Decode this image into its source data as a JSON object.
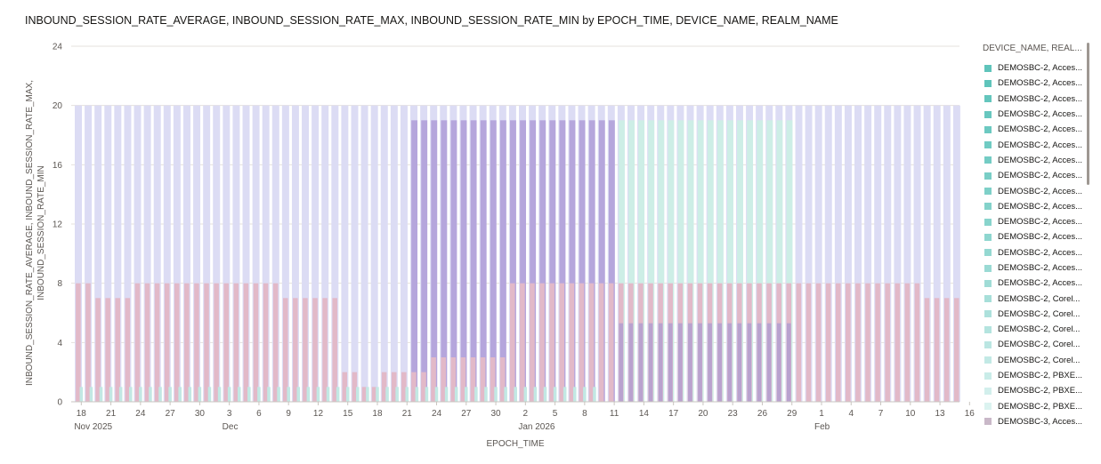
{
  "chart_data": {
    "type": "bar",
    "title": "INBOUND_SESSION_RATE_AVERAGE, INBOUND_SESSION_RATE_MAX, INBOUND_SESSION_RATE_MIN by EPOCH_TIME, DEVICE_NAME, REALM_NAME",
    "xlabel": "EPOCH_TIME",
    "ylabel_lines": [
      "INBOUND_SESSION_RATE_AVERAGE, INBOUND_SESSION_RATE_MAX,",
      "INBOUND_SESSION_RATE_MIN"
    ],
    "ylim": [
      0,
      24
    ],
    "yticks": [
      0,
      4,
      8,
      12,
      16,
      20,
      24
    ],
    "grid": true,
    "legend_position": "right",
    "x_tick_labels": [
      {
        "label": "18",
        "sub": "Nov 2025"
      },
      {
        "label": "21",
        "sub": ""
      },
      {
        "label": "24",
        "sub": ""
      },
      {
        "label": "27",
        "sub": ""
      },
      {
        "label": "30",
        "sub": ""
      },
      {
        "label": "3",
        "sub": "Dec"
      },
      {
        "label": "6",
        "sub": ""
      },
      {
        "label": "9",
        "sub": ""
      },
      {
        "label": "12",
        "sub": ""
      },
      {
        "label": "15",
        "sub": ""
      },
      {
        "label": "18",
        "sub": ""
      },
      {
        "label": "21",
        "sub": ""
      },
      {
        "label": "24",
        "sub": ""
      },
      {
        "label": "27",
        "sub": ""
      },
      {
        "label": "30",
        "sub": ""
      },
      {
        "label": "2",
        "sub": "Jan 2026"
      },
      {
        "label": "5",
        "sub": ""
      },
      {
        "label": "8",
        "sub": ""
      },
      {
        "label": "11",
        "sub": ""
      },
      {
        "label": "14",
        "sub": ""
      },
      {
        "label": "17",
        "sub": ""
      },
      {
        "label": "20",
        "sub": ""
      },
      {
        "label": "23",
        "sub": ""
      },
      {
        "label": "26",
        "sub": ""
      },
      {
        "label": "29",
        "sub": ""
      },
      {
        "label": "1",
        "sub": "Feb"
      },
      {
        "label": "4",
        "sub": ""
      },
      {
        "label": "7",
        "sub": ""
      },
      {
        "label": "10",
        "sub": ""
      },
      {
        "label": "13",
        "sub": ""
      },
      {
        "label": "16",
        "sub": ""
      }
    ],
    "x_days": 90,
    "series": [
      {
        "color": "#dcdcf4",
        "values": [
          20,
          20,
          20,
          20,
          20,
          20,
          20,
          20,
          20,
          20,
          20,
          20,
          20,
          20,
          20,
          20,
          20,
          20,
          20,
          20,
          20,
          20,
          20,
          20,
          20,
          20,
          20,
          20,
          20,
          20,
          20,
          20,
          20,
          20,
          20,
          20,
          20,
          20,
          20,
          20,
          20,
          20,
          20,
          20,
          20,
          20,
          20,
          20,
          20,
          20,
          20,
          20,
          20,
          20,
          20,
          20,
          20,
          20,
          20,
          20,
          20,
          20,
          20,
          20,
          20,
          20,
          20,
          20,
          20,
          20,
          20,
          20,
          20,
          20,
          20,
          20,
          20,
          20,
          20,
          20,
          20,
          20,
          20,
          20,
          20,
          20,
          20,
          20,
          20,
          20,
          20
        ]
      },
      {
        "color": "#b5a6dc",
        "values": [
          0,
          0,
          0,
          0,
          0,
          0,
          0,
          0,
          0,
          0,
          0,
          0,
          0,
          0,
          0,
          0,
          0,
          0,
          0,
          0,
          0,
          0,
          0,
          0,
          0,
          0,
          0,
          0,
          0,
          0,
          0,
          0,
          0,
          0,
          19,
          19,
          19,
          19,
          19,
          19,
          19,
          19,
          19,
          19,
          19,
          19,
          19,
          19,
          19,
          19,
          19,
          19,
          19,
          19,
          19,
          0,
          0,
          0,
          0,
          0,
          0,
          0,
          0,
          0,
          0,
          0,
          0,
          0,
          0,
          0,
          0,
          0,
          0,
          0,
          0,
          0,
          0,
          0,
          0,
          0,
          0,
          0,
          0,
          0,
          0,
          0,
          0,
          0,
          0,
          0,
          0
        ]
      },
      {
        "color": "#cdeee6",
        "values": [
          0,
          0,
          0,
          0,
          0,
          0,
          0,
          0,
          0,
          0,
          0,
          0,
          0,
          0,
          0,
          0,
          0,
          0,
          0,
          0,
          0,
          0,
          0,
          0,
          0,
          0,
          0,
          0,
          0,
          0,
          0,
          0,
          0,
          0,
          0,
          0,
          0,
          0,
          0,
          0,
          0,
          0,
          0,
          0,
          0,
          0,
          0,
          0,
          0,
          0,
          0,
          0,
          0,
          0,
          0,
          19,
          19,
          19,
          19,
          19,
          19,
          19,
          19,
          19,
          19,
          19,
          19,
          19,
          19,
          19,
          19,
          19,
          19,
          0,
          0,
          0,
          0,
          0,
          0,
          0,
          0,
          0,
          0,
          0,
          0,
          0,
          0,
          0,
          0,
          0,
          0
        ]
      },
      {
        "color": "#e2b9c8",
        "values": [
          8,
          8,
          7,
          7,
          7,
          7,
          8,
          8,
          8,
          8,
          8,
          8,
          8,
          8,
          8,
          8,
          8,
          8,
          8,
          8,
          8,
          7,
          7,
          7,
          7,
          7,
          7,
          2,
          2,
          1,
          1,
          2,
          2,
          2,
          2,
          2,
          3,
          3,
          3,
          3,
          3,
          3,
          3,
          3,
          8,
          8,
          8,
          8,
          8,
          8,
          8,
          8,
          8,
          8,
          8,
          8,
          8,
          8,
          8,
          8,
          8,
          8,
          8,
          8,
          8,
          8,
          8,
          8,
          8,
          8,
          8,
          8,
          8,
          8,
          8,
          8,
          8,
          8,
          8,
          8,
          8,
          8,
          8,
          8,
          8,
          8,
          7,
          7,
          7,
          7,
          7
        ]
      },
      {
        "color": "#b9a2cf",
        "values": [
          0,
          0,
          0,
          0,
          0,
          0,
          0,
          0,
          0,
          0,
          0,
          0,
          0,
          0,
          0,
          0,
          0,
          0,
          0,
          0,
          0,
          0,
          0,
          0,
          0,
          0,
          0,
          0,
          0,
          0,
          0,
          0,
          0,
          0,
          0,
          0,
          0,
          0,
          0,
          0,
          0,
          0,
          0,
          0,
          0,
          0,
          0,
          0,
          0,
          0,
          0,
          0,
          0,
          0,
          0,
          5.3,
          5.3,
          5.3,
          5.3,
          5.3,
          5.3,
          5.3,
          5.3,
          5.3,
          5.3,
          5.3,
          5.3,
          5.3,
          5.3,
          5.3,
          5.3,
          5.3,
          5.3,
          0,
          0,
          0,
          0,
          0,
          0,
          0,
          0,
          0,
          0,
          0,
          0,
          0,
          0,
          0,
          0,
          0,
          0
        ]
      },
      {
        "color": "#c2e8e4",
        "values": [
          1,
          1,
          1,
          1,
          1,
          1,
          1,
          1,
          1,
          1,
          1,
          1,
          1,
          1,
          1,
          1,
          1,
          1,
          1,
          1,
          1,
          1,
          1,
          1,
          1,
          1,
          1,
          1,
          1,
          1,
          1,
          1,
          1,
          1,
          1,
          1,
          1,
          1,
          1,
          1,
          1,
          1,
          1,
          1,
          1,
          1,
          1,
          1,
          1,
          1,
          1,
          1,
          1,
          0,
          0,
          0,
          0,
          0,
          0,
          0,
          0,
          0,
          0,
          0,
          0,
          0,
          0,
          0,
          0,
          0,
          0,
          0,
          0,
          0,
          0,
          0,
          0,
          0,
          0,
          0,
          0,
          0,
          0,
          0,
          0,
          0,
          0,
          0,
          0,
          0,
          0
        ]
      }
    ]
  },
  "legend": {
    "title": "DEVICE_NAME, REAL...",
    "items": [
      {
        "label": "DEMOSBC-2, Acces...",
        "color": "#5fc4bb"
      },
      {
        "label": "DEMOSBC-2, Acces...",
        "color": "#5fc4bb"
      },
      {
        "label": "DEMOSBC-2, Acces...",
        "color": "#64c6bd"
      },
      {
        "label": "DEMOSBC-2, Acces...",
        "color": "#68c7bf"
      },
      {
        "label": "DEMOSBC-2, Acces...",
        "color": "#6cc9c1"
      },
      {
        "label": "DEMOSBC-2, Acces...",
        "color": "#70cbc3"
      },
      {
        "label": "DEMOSBC-2, Acces...",
        "color": "#74ccc4"
      },
      {
        "label": "DEMOSBC-2, Acces...",
        "color": "#79cec6"
      },
      {
        "label": "DEMOSBC-2, Acces...",
        "color": "#7ed0c8"
      },
      {
        "label": "DEMOSBC-2, Acces...",
        "color": "#83d2ca"
      },
      {
        "label": "DEMOSBC-2, Acces...",
        "color": "#88d4cc"
      },
      {
        "label": "DEMOSBC-2, Acces...",
        "color": "#8ed6cf"
      },
      {
        "label": "DEMOSBC-2, Acces...",
        "color": "#94d8d1"
      },
      {
        "label": "DEMOSBC-2, Acces...",
        "color": "#9adad4"
      },
      {
        "label": "DEMOSBC-2, Acces...",
        "color": "#a0dcd6"
      },
      {
        "label": "DEMOSBC-2, Corel...",
        "color": "#a7dfd9"
      },
      {
        "label": "DEMOSBC-2, Corel...",
        "color": "#ade1dc"
      },
      {
        "label": "DEMOSBC-2, Corel...",
        "color": "#b4e4df"
      },
      {
        "label": "DEMOSBC-2, Corel...",
        "color": "#bbe6e2"
      },
      {
        "label": "DEMOSBC-2, Corel...",
        "color": "#c2e9e5"
      },
      {
        "label": "DEMOSBC-2, PBXE...",
        "color": "#c9ece8"
      },
      {
        "label": "DEMOSBC-2, PBXE...",
        "color": "#d2efec"
      },
      {
        "label": "DEMOSBC-2, PBXE...",
        "color": "#dbf3f0"
      },
      {
        "label": "DEMOSBC-3, Acces...",
        "color": "#c9b8c8"
      }
    ]
  }
}
